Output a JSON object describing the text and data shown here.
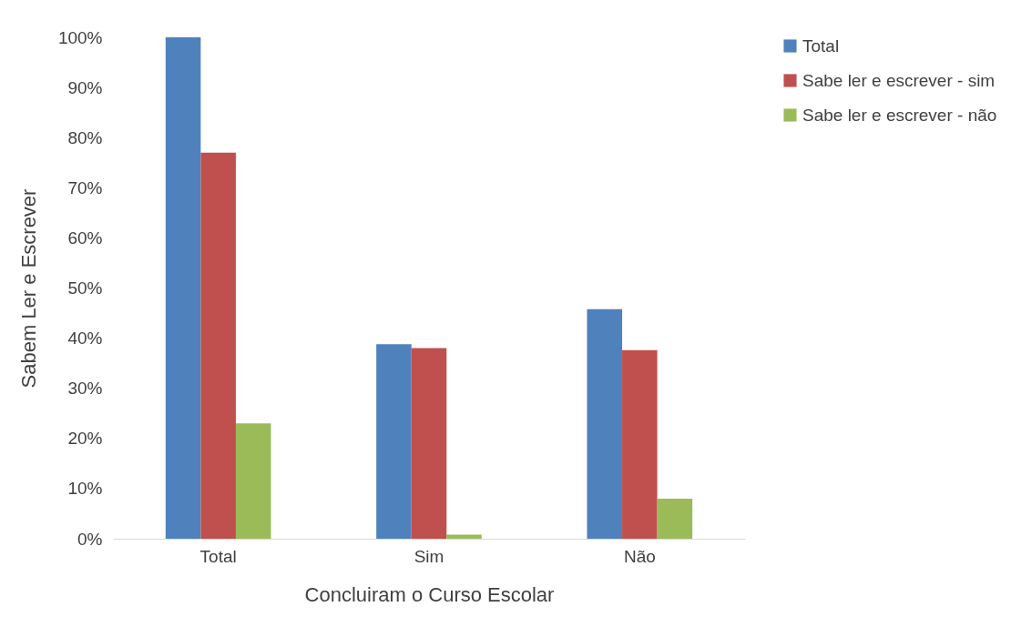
{
  "chart_data": {
    "type": "bar",
    "xlabel": "Concluiram o Curso Escolar",
    "ylabel": "Sabem Ler e Escrever",
    "categories": [
      "Total",
      "Sim",
      "Não"
    ],
    "series": [
      {
        "name": "Total",
        "color": "#4f81bd",
        "values": [
          100,
          38.8,
          45.8
        ]
      },
      {
        "name": "Sabe ler e escrever - sim",
        "color": "#c0504d",
        "values": [
          77,
          38,
          37.6
        ]
      },
      {
        "name": "Sabe ler e escrever - não",
        "color": "#9bbb59",
        "values": [
          23,
          0.8,
          8
        ]
      }
    ],
    "ylim": [
      0,
      100
    ],
    "yticks": [
      {
        "value": 0,
        "label": "0%"
      },
      {
        "value": 10,
        "label": "10%"
      },
      {
        "value": 20,
        "label": "20%"
      },
      {
        "value": 30,
        "label": "30%"
      },
      {
        "value": 40,
        "label": "40%"
      },
      {
        "value": 50,
        "label": "50%"
      },
      {
        "value": 60,
        "label": "60%"
      },
      {
        "value": 70,
        "label": "70%"
      },
      {
        "value": 80,
        "label": "80%"
      },
      {
        "value": 90,
        "label": "90%"
      },
      {
        "value": 100,
        "label": "100%"
      }
    ],
    "grid": false,
    "legend": "right"
  }
}
